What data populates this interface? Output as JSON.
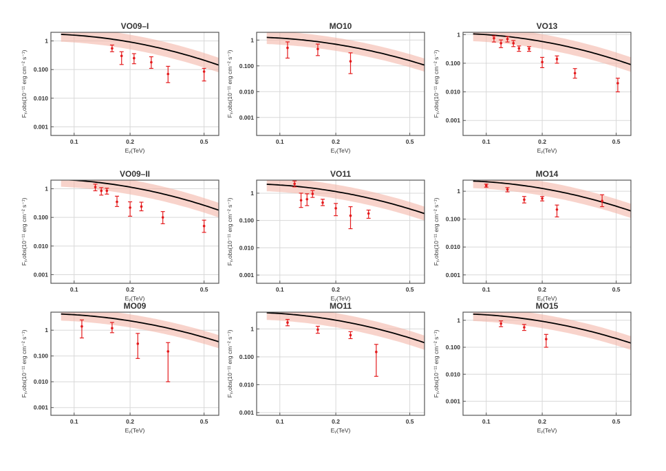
{
  "figure": {
    "xlabel": "Eᵧ(TeV)",
    "ylabel": "Fᵧ,obs(10⁻¹¹ erg cm⁻² s⁻¹)",
    "curve_color": "#000000",
    "band_color": "#f4b6a8",
    "point_color": "#e41a1c"
  },
  "chart_data": [
    {
      "type": "line",
      "title": "VO09–I",
      "xscale": "log",
      "yscale": "log",
      "xlim": [
        0.075,
        0.6
      ],
      "ylim": [
        0.0005,
        2.0
      ],
      "xticks": [
        0.1,
        0.2,
        0.5
      ],
      "xticklabels": [
        "0.1",
        "0.2",
        "0.5"
      ],
      "yticks": [
        0.001,
        0.01,
        0.1,
        1
      ],
      "yticklabels": [
        "0.001",
        "0.010",
        "0.100",
        "1"
      ],
      "grid": true,
      "model_a": 0.04,
      "model_b": -2.75,
      "model_c": -1.15,
      "band_factor": 1.8,
      "points": [
        {
          "x": 0.16,
          "y": 0.55,
          "lo": 0.42,
          "hi": 0.72
        },
        {
          "x": 0.18,
          "y": 0.3,
          "lo": 0.15,
          "hi": 0.42
        },
        {
          "x": 0.21,
          "y": 0.25,
          "lo": 0.16,
          "hi": 0.36
        },
        {
          "x": 0.26,
          "y": 0.18,
          "lo": 0.11,
          "hi": 0.28
        },
        {
          "x": 0.32,
          "y": 0.07,
          "lo": 0.035,
          "hi": 0.13
        },
        {
          "x": 0.5,
          "y": 0.085,
          "lo": 0.04,
          "hi": 0.11
        }
      ]
    },
    {
      "type": "line",
      "title": "MO10",
      "xscale": "log",
      "yscale": "log",
      "xlim": [
        0.075,
        0.6
      ],
      "ylim": [
        0.0002,
        2.0
      ],
      "xticks": [
        0.1,
        0.2,
        0.5
      ],
      "xticklabels": [
        "0.1",
        "0.2",
        "0.5"
      ],
      "yticks": [
        0.001,
        0.01,
        0.1,
        1
      ],
      "yticklabels": [
        "0.001",
        "0.010",
        "0.100",
        "1"
      ],
      "grid": true,
      "model_a": 0.03,
      "model_b": -2.75,
      "model_c": -1.15,
      "band_factor": 1.8,
      "points": [
        {
          "x": 0.11,
          "y": 0.5,
          "lo": 0.2,
          "hi": 0.85
        },
        {
          "x": 0.16,
          "y": 0.45,
          "lo": 0.25,
          "hi": 0.7
        },
        {
          "x": 0.24,
          "y": 0.15,
          "lo": 0.05,
          "hi": 0.32
        }
      ]
    },
    {
      "type": "line",
      "title": "VO13",
      "xscale": "log",
      "yscale": "log",
      "xlim": [
        0.075,
        0.6
      ],
      "ylim": [
        0.0003,
        1.2
      ],
      "xticks": [
        0.1,
        0.2,
        0.5
      ],
      "xticklabels": [
        "0.1",
        "0.2",
        "0.5"
      ],
      "yticks": [
        0.001,
        0.01,
        0.1,
        1
      ],
      "yticklabels": [
        "0.001",
        "0.010",
        "0.100",
        "1"
      ],
      "grid": true,
      "model_a": 0.025,
      "model_b": -2.75,
      "model_c": -1.15,
      "band_factor": 1.8,
      "points": [
        {
          "x": 0.11,
          "y": 0.75,
          "lo": 0.55,
          "hi": 0.9
        },
        {
          "x": 0.12,
          "y": 0.5,
          "lo": 0.35,
          "hi": 0.65
        },
        {
          "x": 0.13,
          "y": 0.7,
          "lo": 0.55,
          "hi": 0.85
        },
        {
          "x": 0.14,
          "y": 0.5,
          "lo": 0.38,
          "hi": 0.62
        },
        {
          "x": 0.15,
          "y": 0.33,
          "lo": 0.26,
          "hi": 0.4
        },
        {
          "x": 0.17,
          "y": 0.32,
          "lo": 0.26,
          "hi": 0.38
        },
        {
          "x": 0.2,
          "y": 0.11,
          "lo": 0.07,
          "hi": 0.16
        },
        {
          "x": 0.24,
          "y": 0.14,
          "lo": 0.1,
          "hi": 0.18
        },
        {
          "x": 0.3,
          "y": 0.045,
          "lo": 0.03,
          "hi": 0.065
        },
        {
          "x": 0.51,
          "y": 0.02,
          "lo": 0.01,
          "hi": 0.03
        }
      ]
    },
    {
      "type": "line",
      "title": "VO09–II",
      "xscale": "log",
      "yscale": "log",
      "xlim": [
        0.075,
        0.6
      ],
      "ylim": [
        0.0005,
        2.0
      ],
      "xticks": [
        0.1,
        0.2,
        0.5
      ],
      "xticklabels": [
        "0.1",
        "0.2",
        "0.5"
      ],
      "yticks": [
        0.001,
        0.01,
        0.1,
        1
      ],
      "yticklabels": [
        "0.001",
        "0.010",
        "0.100",
        "1"
      ],
      "grid": true,
      "model_a": 0.05,
      "model_b": -2.75,
      "model_c": -1.15,
      "band_factor": 1.8,
      "points": [
        {
          "x": 0.13,
          "y": 1.15,
          "lo": 0.85,
          "hi": 1.45
        },
        {
          "x": 0.14,
          "y": 0.85,
          "lo": 0.6,
          "hi": 1.1
        },
        {
          "x": 0.15,
          "y": 0.85,
          "lo": 0.65,
          "hi": 1.05
        },
        {
          "x": 0.17,
          "y": 0.35,
          "lo": 0.24,
          "hi": 0.55
        },
        {
          "x": 0.2,
          "y": 0.22,
          "lo": 0.11,
          "hi": 0.35
        },
        {
          "x": 0.23,
          "y": 0.24,
          "lo": 0.17,
          "hi": 0.34
        },
        {
          "x": 0.3,
          "y": 0.1,
          "lo": 0.06,
          "hi": 0.16
        },
        {
          "x": 0.5,
          "y": 0.05,
          "lo": 0.03,
          "hi": 0.08
        }
      ]
    },
    {
      "type": "line",
      "title": "VO11",
      "xscale": "log",
      "yscale": "log",
      "xlim": [
        0.075,
        0.6
      ],
      "ylim": [
        0.0005,
        3.0
      ],
      "xticks": [
        0.1,
        0.2,
        0.5
      ],
      "xticklabels": [
        "0.1",
        "0.2",
        "0.5"
      ],
      "yticks": [
        0.001,
        0.01,
        0.1,
        1
      ],
      "yticklabels": [
        "0.001",
        "0.010",
        "0.100",
        "1"
      ],
      "grid": true,
      "model_a": 0.05,
      "model_b": -2.75,
      "model_c": -1.15,
      "band_factor": 1.8,
      "points": [
        {
          "x": 0.12,
          "y": 2.2,
          "lo": 1.7,
          "hi": 2.8
        },
        {
          "x": 0.13,
          "y": 0.55,
          "lo": 0.3,
          "hi": 1.0
        },
        {
          "x": 0.14,
          "y": 0.6,
          "lo": 0.35,
          "hi": 0.95
        },
        {
          "x": 0.15,
          "y": 0.95,
          "lo": 0.7,
          "hi": 1.25
        },
        {
          "x": 0.17,
          "y": 0.45,
          "lo": 0.35,
          "hi": 0.6
        },
        {
          "x": 0.2,
          "y": 0.28,
          "lo": 0.15,
          "hi": 0.42
        },
        {
          "x": 0.24,
          "y": 0.15,
          "lo": 0.05,
          "hi": 0.32
        },
        {
          "x": 0.3,
          "y": 0.18,
          "lo": 0.12,
          "hi": 0.24
        }
      ]
    },
    {
      "type": "line",
      "title": "MO14",
      "xscale": "log",
      "yscale": "log",
      "xlim": [
        0.075,
        0.6
      ],
      "ylim": [
        0.0005,
        2.5
      ],
      "xticks": [
        0.1,
        0.2,
        0.5
      ],
      "xticklabels": [
        "0.1",
        "0.2",
        "0.5"
      ],
      "yticks": [
        0.001,
        0.01,
        0.1,
        1
      ],
      "yticklabels": [
        "0.001",
        "0.010",
        "0.100",
        "1"
      ],
      "grid": true,
      "model_a": 0.055,
      "model_b": -2.75,
      "model_c": -1.15,
      "band_factor": 1.8,
      "points": [
        {
          "x": 0.1,
          "y": 1.6,
          "lo": 1.4,
          "hi": 1.8
        },
        {
          "x": 0.13,
          "y": 1.15,
          "lo": 0.95,
          "hi": 1.35
        },
        {
          "x": 0.16,
          "y": 0.5,
          "lo": 0.38,
          "hi": 0.65
        },
        {
          "x": 0.2,
          "y": 0.55,
          "lo": 0.45,
          "hi": 0.65
        },
        {
          "x": 0.24,
          "y": 0.22,
          "lo": 0.12,
          "hi": 0.32
        },
        {
          "x": 0.42,
          "y": 0.45,
          "lo": 0.28,
          "hi": 0.75
        }
      ]
    },
    {
      "type": "line",
      "title": "MO09",
      "xscale": "log",
      "yscale": "log",
      "xlim": [
        0.075,
        0.6
      ],
      "ylim": [
        0.0005,
        5.0
      ],
      "xticks": [
        0.1,
        0.2,
        0.5
      ],
      "xticklabels": [
        "0.1",
        "0.2",
        "0.5"
      ],
      "yticks": [
        0.001,
        0.01,
        0.1,
        1
      ],
      "yticklabels": [
        "0.001",
        "0.010",
        "0.100",
        "1"
      ],
      "grid": true,
      "model_a": 0.1,
      "model_b": -2.75,
      "model_c": -1.15,
      "band_factor": 1.8,
      "points": [
        {
          "x": 0.11,
          "y": 1.4,
          "lo": 0.5,
          "hi": 2.5
        },
        {
          "x": 0.16,
          "y": 1.2,
          "lo": 0.8,
          "hi": 2.0
        },
        {
          "x": 0.22,
          "y": 0.3,
          "lo": 0.08,
          "hi": 0.75
        },
        {
          "x": 0.32,
          "y": 0.15,
          "lo": 0.01,
          "hi": 0.33
        }
      ]
    },
    {
      "type": "line",
      "title": "MO11",
      "xscale": "log",
      "yscale": "log",
      "xlim": [
        0.075,
        0.6
      ],
      "ylim": [
        0.0008,
        4.0
      ],
      "xticks": [
        0.1,
        0.2,
        0.5
      ],
      "xticklabels": [
        "0.1",
        "0.2",
        "0.5"
      ],
      "yticks": [
        0.001,
        0.01,
        0.1,
        1
      ],
      "yticklabels": [
        "0.001",
        "0.010",
        "0.100",
        "1"
      ],
      "grid": true,
      "model_a": 0.09,
      "model_b": -2.75,
      "model_c": -1.15,
      "band_factor": 1.8,
      "points": [
        {
          "x": 0.11,
          "y": 1.7,
          "lo": 1.3,
          "hi": 2.2
        },
        {
          "x": 0.16,
          "y": 0.95,
          "lo": 0.7,
          "hi": 1.25
        },
        {
          "x": 0.24,
          "y": 0.6,
          "lo": 0.45,
          "hi": 0.8
        },
        {
          "x": 0.33,
          "y": 0.15,
          "lo": 0.02,
          "hi": 0.28
        }
      ]
    },
    {
      "type": "line",
      "title": "MO15",
      "xscale": "log",
      "yscale": "log",
      "xlim": [
        0.075,
        0.6
      ],
      "ylim": [
        0.0003,
        2.0
      ],
      "xticks": [
        0.1,
        0.2,
        0.5
      ],
      "xticklabels": [
        "0.1",
        "0.2",
        "0.5"
      ],
      "yticks": [
        0.001,
        0.01,
        0.1,
        1
      ],
      "yticklabels": [
        "0.001",
        "0.010",
        "0.100",
        "1"
      ],
      "grid": true,
      "model_a": 0.04,
      "model_b": -2.75,
      "model_c": -1.15,
      "band_factor": 1.8,
      "points": [
        {
          "x": 0.12,
          "y": 0.75,
          "lo": 0.58,
          "hi": 0.95
        },
        {
          "x": 0.16,
          "y": 0.55,
          "lo": 0.42,
          "hi": 0.7
        },
        {
          "x": 0.21,
          "y": 0.2,
          "lo": 0.1,
          "hi": 0.3
        }
      ]
    }
  ]
}
